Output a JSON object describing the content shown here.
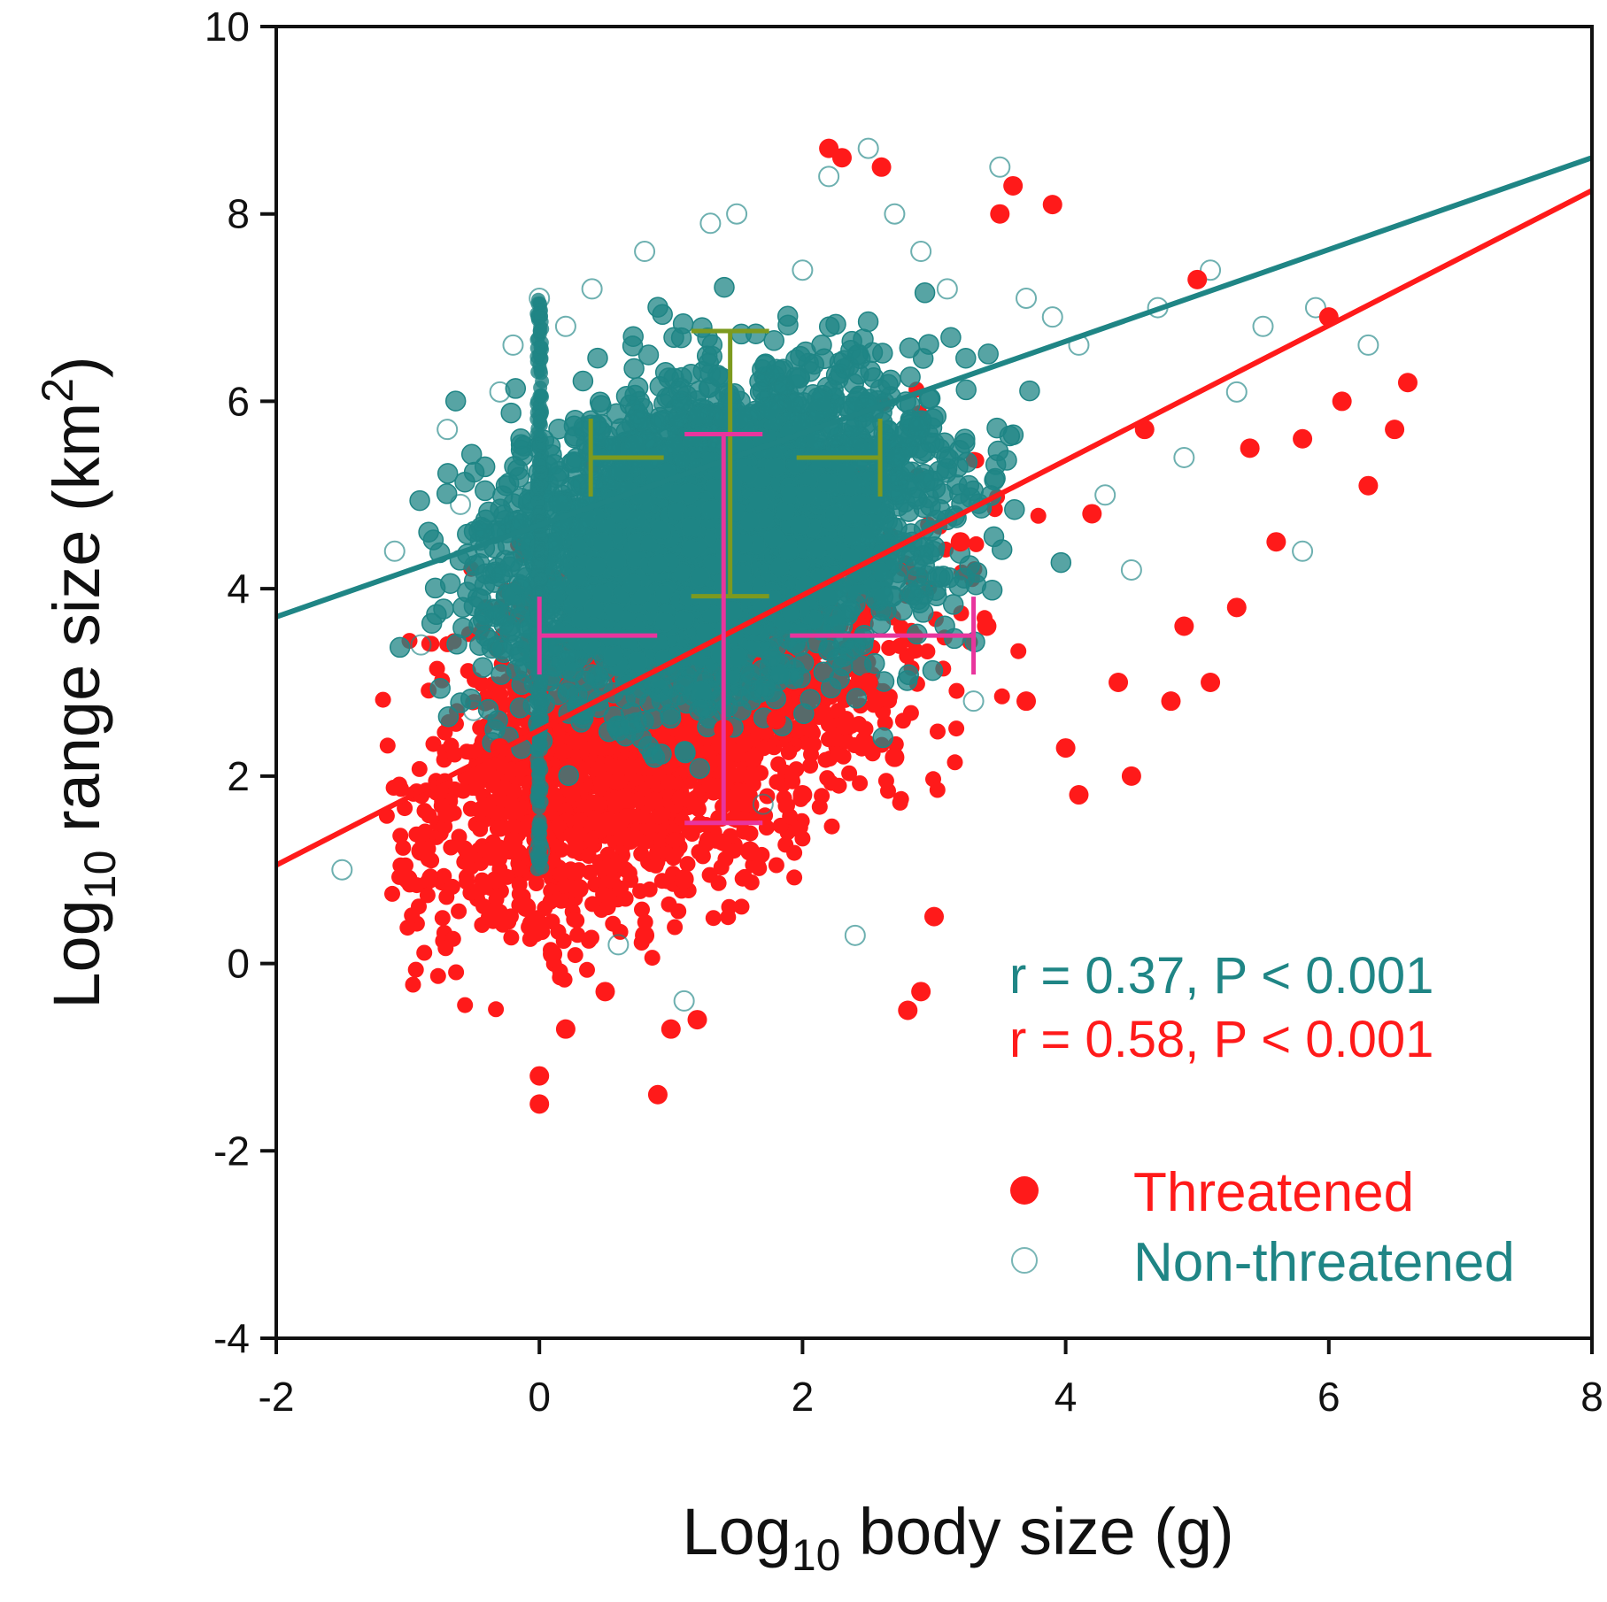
{
  "chart_data": {
    "type": "scatter",
    "title": "",
    "xlabel": {
      "prefix": "Log",
      "sub": "10",
      "rest": " body size (g)"
    },
    "ylabel": {
      "prefix": "Log",
      "sub": "10",
      "mid": " range size (km",
      "sup": "2",
      "end": ")"
    },
    "xlim": [
      -2,
      8
    ],
    "ylim": [
      -4,
      10
    ],
    "xticks": [
      "-2",
      "0",
      "2",
      "4",
      "6",
      "8"
    ],
    "yticks": [
      "-4",
      "-2",
      "0",
      "2",
      "4",
      "6",
      "8",
      "10"
    ],
    "grid": false,
    "legend_position": "bottom-right",
    "series": [
      {
        "name": "Threatened",
        "marker": "filled-circle",
        "color": "#ff1a1a",
        "points": [
          [
            -1.0,
            0.9
          ],
          [
            -0.9,
            1.2
          ],
          [
            -0.7,
            1.6
          ],
          [
            -0.5,
            2.0
          ],
          [
            -0.3,
            2.3
          ],
          [
            -0.2,
            1.3
          ],
          [
            -0.1,
            0.6
          ],
          [
            0.0,
            -1.2
          ],
          [
            0.0,
            -1.5
          ],
          [
            0.1,
            0.1
          ],
          [
            0.2,
            -0.7
          ],
          [
            0.3,
            0.8
          ],
          [
            0.5,
            -0.3
          ],
          [
            0.6,
            1.5
          ],
          [
            0.8,
            0.3
          ],
          [
            0.9,
            -1.4
          ],
          [
            1.0,
            -0.7
          ],
          [
            1.1,
            0.9
          ],
          [
            1.2,
            -0.6
          ],
          [
            1.4,
            2.5
          ],
          [
            1.6,
            1.2
          ],
          [
            1.8,
            2.6
          ],
          [
            2.0,
            1.8
          ],
          [
            2.2,
            8.7
          ],
          [
            2.3,
            8.6
          ],
          [
            2.5,
            3.0
          ],
          [
            2.6,
            8.5
          ],
          [
            2.7,
            2.2
          ],
          [
            2.8,
            -0.5
          ],
          [
            2.9,
            -0.3
          ],
          [
            3.0,
            0.5
          ],
          [
            3.2,
            4.5
          ],
          [
            3.4,
            3.6
          ],
          [
            3.5,
            8.0
          ],
          [
            3.6,
            8.3
          ],
          [
            3.7,
            2.8
          ],
          [
            3.9,
            8.1
          ],
          [
            4.0,
            2.3
          ],
          [
            4.1,
            1.8
          ],
          [
            4.2,
            4.8
          ],
          [
            4.4,
            3.0
          ],
          [
            4.5,
            2.0
          ],
          [
            4.6,
            5.7
          ],
          [
            4.8,
            2.8
          ],
          [
            4.9,
            3.6
          ],
          [
            5.0,
            7.3
          ],
          [
            5.1,
            3.0
          ],
          [
            5.3,
            3.8
          ],
          [
            5.4,
            5.5
          ],
          [
            5.6,
            4.5
          ],
          [
            5.8,
            5.6
          ],
          [
            6.0,
            6.9
          ],
          [
            6.1,
            6.0
          ],
          [
            6.3,
            5.1
          ],
          [
            6.5,
            5.7
          ],
          [
            6.6,
            6.2
          ]
        ]
      },
      {
        "name": "Non-threatened",
        "marker": "open-circle",
        "color": "#1f8585",
        "points": [
          [
            -1.5,
            1.0
          ],
          [
            -1.1,
            4.4
          ],
          [
            -0.9,
            3.4
          ],
          [
            -0.7,
            5.7
          ],
          [
            -0.6,
            4.9
          ],
          [
            -0.5,
            2.7
          ],
          [
            -0.3,
            6.1
          ],
          [
            -0.2,
            6.6
          ],
          [
            -0.1,
            3.1
          ],
          [
            0.0,
            7.1
          ],
          [
            0.0,
            1.2
          ],
          [
            0.2,
            6.8
          ],
          [
            0.4,
            7.2
          ],
          [
            0.6,
            0.2
          ],
          [
            0.8,
            7.6
          ],
          [
            1.1,
            -0.4
          ],
          [
            1.3,
            7.9
          ],
          [
            1.5,
            8.0
          ],
          [
            1.7,
            1.7
          ],
          [
            2.0,
            7.4
          ],
          [
            2.2,
            8.4
          ],
          [
            2.4,
            0.3
          ],
          [
            2.5,
            8.7
          ],
          [
            2.7,
            8.0
          ],
          [
            2.9,
            7.6
          ],
          [
            3.1,
            7.2
          ],
          [
            3.3,
            2.8
          ],
          [
            3.5,
            8.5
          ],
          [
            3.7,
            7.1
          ],
          [
            3.9,
            6.9
          ],
          [
            4.1,
            6.6
          ],
          [
            4.3,
            5.0
          ],
          [
            4.5,
            4.2
          ],
          [
            4.7,
            7.0
          ],
          [
            4.9,
            5.4
          ],
          [
            5.1,
            7.4
          ],
          [
            5.3,
            6.1
          ],
          [
            5.5,
            6.8
          ],
          [
            5.8,
            4.4
          ],
          [
            5.9,
            7.0
          ],
          [
            6.3,
            6.6
          ]
        ]
      }
    ],
    "fits": [
      {
        "series": "Non-threatened",
        "color": "#1f8585",
        "x": [
          -2,
          8
        ],
        "y": [
          3.7,
          8.6
        ]
      },
      {
        "series": "Threatened",
        "color": "#ff1a1a",
        "x": [
          -2,
          8
        ],
        "y": [
          1.05,
          8.25
        ]
      }
    ],
    "error_bars": [
      {
        "series": "Non-threatened",
        "color": "#7d9a1f",
        "x": 1.45,
        "y": 5.4,
        "x_err": [
          1.06,
          1.14
        ],
        "y_err": [
          1.48,
          1.35
        ]
      },
      {
        "series": "Threatened",
        "color": "#e8359d",
        "x": 1.4,
        "y": 3.5,
        "x_err": [
          1.4,
          1.9
        ],
        "y_err": [
          2.0,
          2.15
        ]
      }
    ],
    "annotations": [
      {
        "text": "r = 0.37, P < 0.001",
        "color": "#1f8585"
      },
      {
        "text": "r = 0.58, P < 0.001",
        "color": "#ff1a1a"
      }
    ]
  }
}
